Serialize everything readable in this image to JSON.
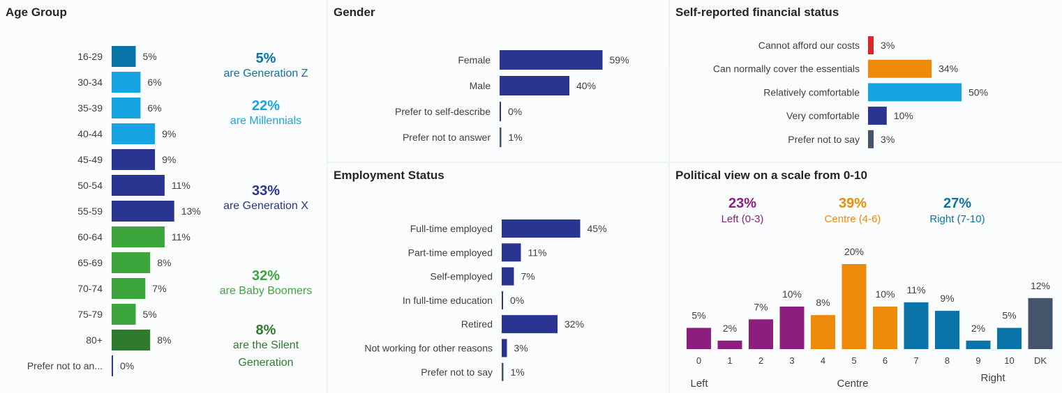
{
  "chart_data": [
    {
      "id": "age",
      "type": "bar",
      "orientation": "horizontal",
      "title": "Age Group",
      "categories": [
        "16-29",
        "30-34",
        "35-39",
        "40-44",
        "45-49",
        "50-54",
        "55-59",
        "60-64",
        "65-69",
        "70-74",
        "75-79",
        "80+",
        "Prefer not to an..."
      ],
      "values": [
        5,
        6,
        6,
        9,
        9,
        11,
        13,
        11,
        8,
        7,
        5,
        8,
        0
      ],
      "value_labels": [
        "5%",
        "6%",
        "6%",
        "9%",
        "9%",
        "11%",
        "13%",
        "11%",
        "8%",
        "7%",
        "5%",
        "8%",
        "0%"
      ],
      "bar_colors": [
        "#0a73a8",
        "#17a4e3",
        "#17a4e3",
        "#17a4e3",
        "#2a3592",
        "#2a3592",
        "#2a3592",
        "#3ca63c",
        "#3ca63c",
        "#3ca63c",
        "#3ca63c",
        "#2e7b2e",
        "#2a3592"
      ],
      "annotations": [
        {
          "percent": "5%",
          "text": [
            "are Generation Z"
          ],
          "color": "#0a73a8"
        },
        {
          "percent": "22%",
          "text": [
            "are Millennials"
          ],
          "color": "#17a4e3"
        },
        {
          "percent": "33%",
          "text": [
            "are Generation X"
          ],
          "color": "#2a3592"
        },
        {
          "percent": "32%",
          "text": [
            "are Baby Boomers"
          ],
          "color": "#3ca63c"
        },
        {
          "percent": "8%",
          "text": [
            "are the Silent",
            "Generation"
          ],
          "color": "#2e7b2e"
        }
      ]
    },
    {
      "id": "gender",
      "type": "bar",
      "orientation": "horizontal",
      "title": "Gender",
      "categories": [
        "Female",
        "Male",
        "Prefer to self-describe",
        "Prefer not to answer"
      ],
      "values": [
        59,
        40,
        0,
        1
      ],
      "value_labels": [
        "59%",
        "40%",
        "0%",
        "1%"
      ],
      "bar_colors": [
        "#2a3592",
        "#2a3592",
        "#2a3592",
        "#44546a"
      ]
    },
    {
      "id": "employment",
      "type": "bar",
      "orientation": "horizontal",
      "title": "Employment Status",
      "categories": [
        "Full-time employed",
        "Part-time employed",
        "Self-employed",
        "In full-time education",
        "Retired",
        "Not working for other reasons",
        "Prefer not to say"
      ],
      "values": [
        45,
        11,
        7,
        0,
        32,
        3,
        1
      ],
      "value_labels": [
        "45%",
        "11%",
        "7%",
        "0%",
        "32%",
        "3%",
        "1%"
      ],
      "bar_colors": [
        "#2a3592",
        "#2a3592",
        "#2a3592",
        "#2a3592",
        "#2a3592",
        "#2a3592",
        "#44546a"
      ]
    },
    {
      "id": "financial",
      "type": "bar",
      "orientation": "horizontal",
      "title": "Self-reported financial status",
      "categories": [
        "Cannot afford our costs",
        "Can normally cover the essentials",
        "Relatively comfortable",
        "Very comfortable",
        "Prefer not to say"
      ],
      "values": [
        3,
        34,
        50,
        10,
        3
      ],
      "value_labels": [
        "3%",
        "34%",
        "50%",
        "10%",
        "3%"
      ],
      "bar_colors": [
        "#d9262b",
        "#ee8a0a",
        "#17a4e3",
        "#2a3592",
        "#44546a"
      ]
    },
    {
      "id": "political",
      "type": "bar",
      "orientation": "vertical",
      "title": "Political view on a scale from 0-10",
      "categories": [
        "0",
        "1",
        "2",
        "3",
        "4",
        "5",
        "6",
        "7",
        "8",
        "9",
        "10",
        "DK"
      ],
      "values": [
        5,
        2,
        7,
        10,
        8,
        20,
        10,
        11,
        9,
        2,
        5,
        12
      ],
      "value_labels": [
        "5%",
        "2%",
        "7%",
        "10%",
        "8%",
        "20%",
        "10%",
        "11%",
        "9%",
        "2%",
        "5%",
        "12%"
      ],
      "bar_colors": [
        "#8c1f7e",
        "#8c1f7e",
        "#8c1f7e",
        "#8c1f7e",
        "#ee8a0a",
        "#ee8a0a",
        "#ee8a0a",
        "#0a73a8",
        "#0a73a8",
        "#0a73a8",
        "#0a73a8",
        "#44546a"
      ],
      "annotations": [
        {
          "percent": "23%",
          "text": [
            "Left (0-3)"
          ],
          "color": "#8c1f7e"
        },
        {
          "percent": "39%",
          "text": [
            "Centre (4-6)"
          ],
          "color": "#ee8a0a"
        },
        {
          "percent": "27%",
          "text": [
            "Right (7-10)"
          ],
          "color": "#0a73a8"
        }
      ],
      "axis_group_labels": [
        "Left",
        "Centre",
        "Right"
      ]
    }
  ]
}
